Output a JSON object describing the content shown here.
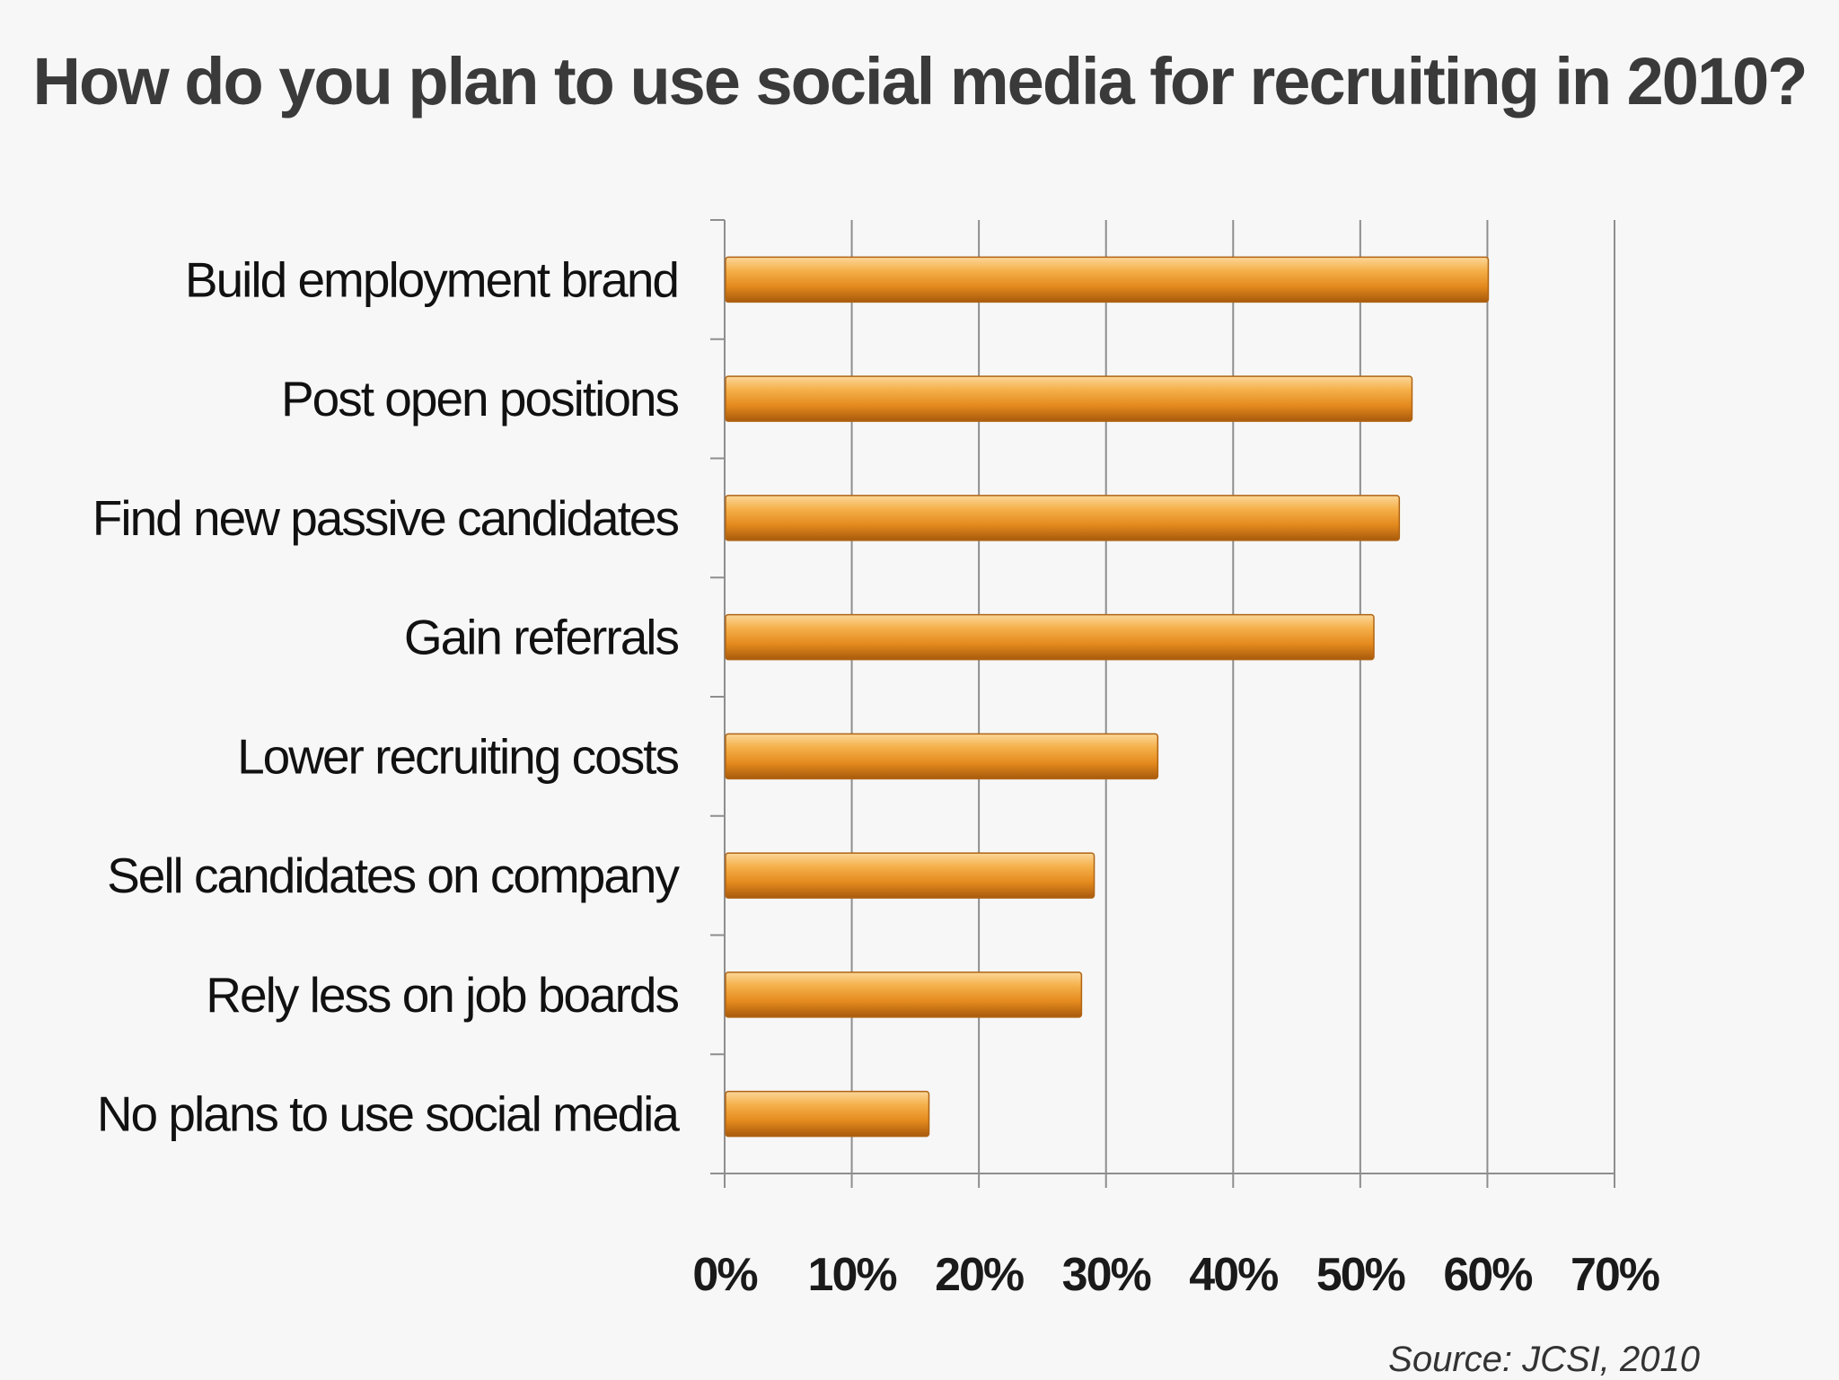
{
  "chart_data": {
    "type": "bar",
    "orientation": "horizontal",
    "title": "How do you plan to use social media for recruiting in 2010?",
    "categories": [
      "Build employment brand",
      "Post open positions",
      "Find new passive candidates",
      "Gain referrals",
      "Lower recruiting costs",
      "Sell candidates on company",
      "Rely less on job boards",
      "No plans to use social media"
    ],
    "values": [
      60,
      54,
      53,
      51,
      34,
      29,
      28,
      16
    ],
    "value_unit": "%",
    "xlim": [
      0,
      70
    ],
    "x_ticks": [
      "0%",
      "10%",
      "20%",
      "30%",
      "40%",
      "50%",
      "60%",
      "70%"
    ],
    "xlabel": "",
    "ylabel": "",
    "grid": "vertical",
    "legend": "none",
    "bar_color": "#e8942a",
    "source": "Source: JCSI, 2010"
  }
}
